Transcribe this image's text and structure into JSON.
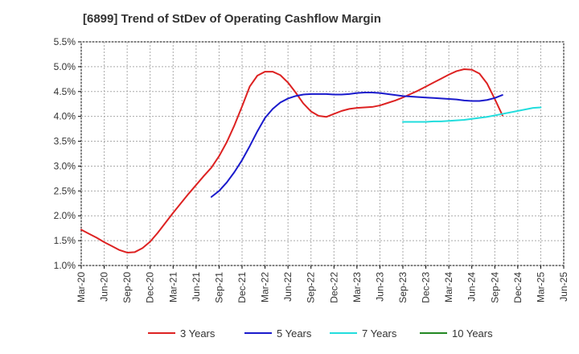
{
  "chart_data": {
    "type": "line",
    "title": "[6899]  Trend of StDev of Operating Cashflow Margin",
    "xlabel": "",
    "ylabel": "",
    "x_ticks": [
      "Mar-20",
      "Jun-20",
      "Sep-20",
      "Dec-20",
      "Mar-21",
      "Jun-21",
      "Sep-21",
      "Dec-21",
      "Mar-22",
      "Jun-22",
      "Sep-22",
      "Dec-22",
      "Mar-23",
      "Jun-23",
      "Sep-23",
      "Dec-23",
      "Mar-24",
      "Jun-24",
      "Sep-24",
      "Dec-24",
      "Mar-25",
      "Jun-25"
    ],
    "y_ticks": [
      "1.0%",
      "1.5%",
      "2.0%",
      "2.5%",
      "3.0%",
      "3.5%",
      "4.0%",
      "4.5%",
      "5.0%",
      "5.5%"
    ],
    "ylim": [
      1.0,
      5.5
    ],
    "grid": true,
    "legend_position": "bottom",
    "series": [
      {
        "name": "3 Years",
        "color": "#dd2222",
        "points": [
          [
            "Mar-20",
            1.72
          ],
          [
            "Apr-20",
            1.64
          ],
          [
            "May-20",
            1.56
          ],
          [
            "Jun-20",
            1.47
          ],
          [
            "Jul-20",
            1.39
          ],
          [
            "Aug-20",
            1.31
          ],
          [
            "Sep-20",
            1.26
          ],
          [
            "Oct-20",
            1.27
          ],
          [
            "Nov-20",
            1.35
          ],
          [
            "Dec-20",
            1.48
          ],
          [
            "Jan-21",
            1.66
          ],
          [
            "Feb-21",
            1.86
          ],
          [
            "Mar-21",
            2.06
          ],
          [
            "Apr-21",
            2.25
          ],
          [
            "May-21",
            2.44
          ],
          [
            "Jun-21",
            2.62
          ],
          [
            "Jul-21",
            2.8
          ],
          [
            "Aug-21",
            2.97
          ],
          [
            "Sep-21",
            3.2
          ],
          [
            "Oct-21",
            3.48
          ],
          [
            "Nov-21",
            3.82
          ],
          [
            "Dec-21",
            4.2
          ],
          [
            "Jan-22",
            4.6
          ],
          [
            "Feb-22",
            4.82
          ],
          [
            "Mar-22",
            4.9
          ],
          [
            "Apr-22",
            4.9
          ],
          [
            "May-22",
            4.83
          ],
          [
            "Jun-22",
            4.68
          ],
          [
            "Jul-22",
            4.48
          ],
          [
            "Aug-22",
            4.26
          ],
          [
            "Sep-22",
            4.1
          ],
          [
            "Oct-22",
            4.01
          ],
          [
            "Nov-22",
            3.99
          ],
          [
            "Dec-22",
            4.05
          ],
          [
            "Jan-23",
            4.11
          ],
          [
            "Feb-23",
            4.15
          ],
          [
            "Mar-23",
            4.17
          ],
          [
            "Apr-23",
            4.18
          ],
          [
            "May-23",
            4.19
          ],
          [
            "Jun-23",
            4.22
          ],
          [
            "Jul-23",
            4.27
          ],
          [
            "Aug-23",
            4.32
          ],
          [
            "Sep-23",
            4.38
          ],
          [
            "Oct-23",
            4.45
          ],
          [
            "Nov-23",
            4.52
          ],
          [
            "Dec-23",
            4.6
          ],
          [
            "Jan-24",
            4.68
          ],
          [
            "Feb-24",
            4.76
          ],
          [
            "Mar-24",
            4.84
          ],
          [
            "Apr-24",
            4.91
          ],
          [
            "May-24",
            4.95
          ],
          [
            "Jun-24",
            4.94
          ],
          [
            "Jul-24",
            4.86
          ],
          [
            "Aug-24",
            4.66
          ],
          [
            "Sep-24",
            4.35
          ],
          [
            "Oct-24",
            4.02
          ]
        ]
      },
      {
        "name": "5 Years",
        "color": "#1a1acc",
        "points": [
          [
            "Aug-21",
            2.38
          ],
          [
            "Sep-21",
            2.5
          ],
          [
            "Oct-21",
            2.67
          ],
          [
            "Nov-21",
            2.88
          ],
          [
            "Dec-21",
            3.12
          ],
          [
            "Jan-22",
            3.4
          ],
          [
            "Feb-22",
            3.7
          ],
          [
            "Mar-22",
            3.97
          ],
          [
            "Apr-22",
            4.15
          ],
          [
            "May-22",
            4.28
          ],
          [
            "Jun-22",
            4.36
          ],
          [
            "Jul-22",
            4.41
          ],
          [
            "Aug-22",
            4.44
          ],
          [
            "Sep-22",
            4.45
          ],
          [
            "Oct-22",
            4.45
          ],
          [
            "Nov-22",
            4.45
          ],
          [
            "Dec-22",
            4.44
          ],
          [
            "Jan-23",
            4.44
          ],
          [
            "Feb-23",
            4.45
          ],
          [
            "Mar-23",
            4.47
          ],
          [
            "Apr-23",
            4.48
          ],
          [
            "May-23",
            4.48
          ],
          [
            "Jun-23",
            4.47
          ],
          [
            "Jul-23",
            4.45
          ],
          [
            "Aug-23",
            4.43
          ],
          [
            "Sep-23",
            4.41
          ],
          [
            "Oct-23",
            4.4
          ],
          [
            "Nov-23",
            4.39
          ],
          [
            "Dec-23",
            4.38
          ],
          [
            "Jan-24",
            4.37
          ],
          [
            "Feb-24",
            4.36
          ],
          [
            "Mar-24",
            4.35
          ],
          [
            "Apr-24",
            4.34
          ],
          [
            "May-24",
            4.32
          ],
          [
            "Jun-24",
            4.31
          ],
          [
            "Jul-24",
            4.31
          ],
          [
            "Aug-24",
            4.33
          ],
          [
            "Sep-24",
            4.37
          ],
          [
            "Oct-24",
            4.43
          ]
        ]
      },
      {
        "name": "7 Years",
        "color": "#22dddd",
        "points": [
          [
            "Sep-23",
            3.89
          ],
          [
            "Oct-23",
            3.89
          ],
          [
            "Nov-23",
            3.89
          ],
          [
            "Dec-23",
            3.89
          ],
          [
            "Jan-24",
            3.9
          ],
          [
            "Feb-24",
            3.9
          ],
          [
            "Mar-24",
            3.91
          ],
          [
            "Apr-24",
            3.92
          ],
          [
            "May-24",
            3.93
          ],
          [
            "Jun-24",
            3.95
          ],
          [
            "Jul-24",
            3.97
          ],
          [
            "Aug-24",
            3.99
          ],
          [
            "Sep-24",
            4.02
          ],
          [
            "Oct-24",
            4.05
          ],
          [
            "Nov-24",
            4.08
          ],
          [
            "Dec-24",
            4.11
          ],
          [
            "Jan-25",
            4.14
          ],
          [
            "Feb-25",
            4.17
          ],
          [
            "Mar-25",
            4.18
          ]
        ]
      },
      {
        "name": "10 Years",
        "color": "#228822",
        "points": []
      }
    ]
  }
}
